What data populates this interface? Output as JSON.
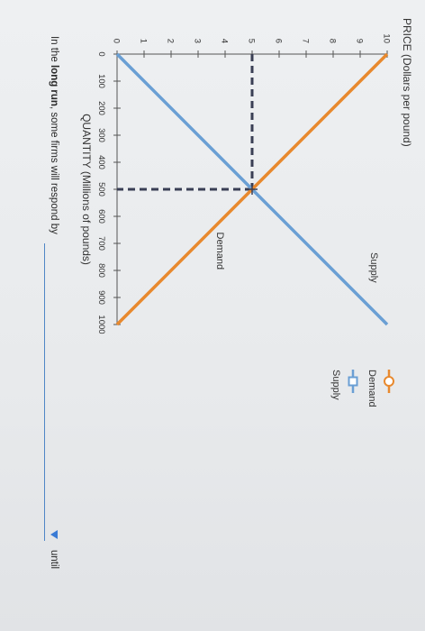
{
  "chart_data": {
    "type": "line",
    "ylabel": "PRICE (Dollars per pound)",
    "xlabel": "QUANTITY (Millions of pounds)",
    "xlim": [
      0,
      1000
    ],
    "ylim": [
      0,
      10
    ],
    "x_ticks": [
      "0",
      "100",
      "200",
      "300",
      "400",
      "500",
      "600",
      "700",
      "800",
      "900",
      "1000"
    ],
    "y_ticks": [
      "0",
      "1",
      "2",
      "3",
      "4",
      "5",
      "6",
      "7",
      "8",
      "9",
      "10"
    ],
    "series": [
      {
        "name": "Supply",
        "color": "#6a9fd4",
        "marker": "square",
        "points": [
          [
            0,
            0
          ],
          [
            1000,
            10
          ]
        ]
      },
      {
        "name": "Demand",
        "color": "#e8892e",
        "marker": "circle",
        "points": [
          [
            0,
            10
          ],
          [
            1000,
            0
          ]
        ]
      }
    ],
    "curve_labels": [
      {
        "text": "Supply",
        "series": "Supply"
      },
      {
        "text": "Demand",
        "series": "Demand"
      }
    ],
    "equilibrium": {
      "x": 500,
      "y": 5
    },
    "legend": {
      "position": "right",
      "items": [
        {
          "label": "Demand",
          "marker": "circle",
          "color": "#e8892e"
        },
        {
          "label": "Supply",
          "marker": "square",
          "color": "#6a9fd4"
        }
      ]
    }
  },
  "question": {
    "prefix": "In the ",
    "emphasis": "long run",
    "suffix": ", some firms will respond by",
    "trailing": "until",
    "period": "."
  }
}
